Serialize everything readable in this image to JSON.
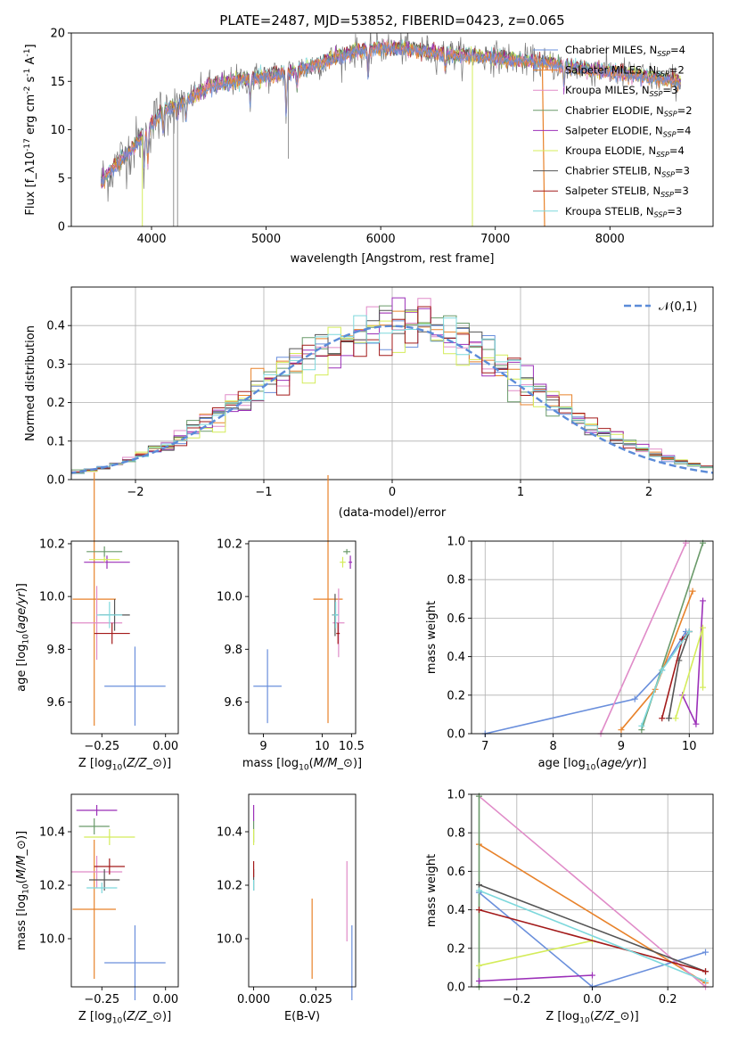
{
  "colors": [
    "#6a8fdc",
    "#e8822a",
    "#e08bc8",
    "#6a9a6a",
    "#9b2fb8",
    "#d4ec5a",
    "#555555",
    "#a31a1a",
    "#7dd8dc"
  ],
  "chart_data": [
    {
      "id": "spectrum",
      "type": "line",
      "title": "PLATE=2487, MJD=53852, FIBERID=0423, z=0.065",
      "xlabel": "wavelength [Angstrom, rest frame]",
      "ylabel": "Flux [f$_\\lambda$10$^{-17}$ erg cm$^{-2}$ s$^{-1}$ A$^{-1}$]",
      "xlim": [
        3300,
        8900
      ],
      "ylim": [
        0,
        20
      ],
      "xticks": [
        "4000",
        "5000",
        "6000",
        "7000",
        "8000"
      ],
      "yticks": [
        "0",
        "5",
        "10",
        "15",
        "20"
      ],
      "legend_position": "top-right",
      "series": [
        {
          "name": "Chabrier MILES, N$_{SSP}$=4"
        },
        {
          "name": "Salpeter MILES, N$_{SSP}$=2"
        },
        {
          "name": "Kroupa MILES, N$_{SSP}$=3"
        },
        {
          "name": "Chabrier ELODIE, N$_{SSP}$=2"
        },
        {
          "name": "Salpeter ELODIE, N$_{SSP}$=4"
        },
        {
          "name": "Kroupa ELODIE, N$_{SSP}$=4"
        },
        {
          "name": "Chabrier STELIB, N$_{SSP}$=3"
        },
        {
          "name": "Salpeter STELIB, N$_{SSP}$=3"
        },
        {
          "name": "Kroupa STELIB, N$_{SSP}$=3"
        }
      ],
      "continuum": {
        "x": [
          3550,
          3700,
          3900,
          4000,
          4100,
          4300,
          4500,
          4800,
          5000,
          5200,
          5500,
          5800,
          6000,
          6300,
          6600,
          7000,
          7200,
          7500,
          7800,
          8000,
          8300,
          8600
        ],
        "y": [
          4.5,
          6.5,
          9,
          10.5,
          12,
          13,
          14.5,
          15.2,
          15.5,
          16,
          17,
          18.2,
          18.5,
          18.3,
          17.8,
          17.5,
          17.2,
          16.8,
          16.2,
          16,
          15.5,
          15
        ]
      }
    },
    {
      "id": "residuals",
      "type": "histogram",
      "xlabel": "(data-model)/error",
      "ylabel": "Normed distribution",
      "xlim": [
        -2.5,
        2.5
      ],
      "ylim": [
        0,
        0.5
      ],
      "xticks": [
        "−2",
        "−1",
        "0",
        "1",
        "2"
      ],
      "yticks": [
        "0.0",
        "0.1",
        "0.2",
        "0.3",
        "0.4"
      ],
      "legend_position": "top-right",
      "reference_curve": {
        "label": "$\\mathcal{N}(0,1)$",
        "type": "normal",
        "mean": 0,
        "sigma": 1
      }
    },
    {
      "id": "age_vs_Z",
      "type": "errorbar",
      "xlabel": "Z [log$_{10}$($Z/Z_\\odot$)]",
      "ylabel": "age  [log$_{10}$($age/yr$)]",
      "xlim": [
        -0.37,
        0.05
      ],
      "ylim": [
        9.48,
        10.21
      ],
      "xticks": [
        "−0.25",
        "0.00"
      ],
      "yticks": [
        "9.6",
        "9.8",
        "10.0",
        "10.2"
      ],
      "points": [
        {
          "x": -0.12,
          "y": 9.66,
          "xerr": 0.12,
          "yerr": 0.15
        },
        {
          "x": -0.28,
          "y": 9.99,
          "xerr": 0.085,
          "yerr": 0.48
        },
        {
          "x": -0.27,
          "y": 9.9,
          "xerr": 0.1,
          "yerr": 0.14
        },
        {
          "x": -0.24,
          "y": 10.17,
          "xerr": 0.07,
          "yerr": 0.02
        },
        {
          "x": -0.23,
          "y": 10.13,
          "xerr": 0.09,
          "yerr": 0.025
        },
        {
          "x": -0.24,
          "y": 10.14,
          "xerr": 0.06,
          "yerr": 0.01
        },
        {
          "x": -0.2,
          "y": 9.93,
          "xerr": 0.06,
          "yerr": 0.06
        },
        {
          "x": -0.21,
          "y": 9.86,
          "xerr": 0.07,
          "yerr": 0.04
        },
        {
          "x": -0.22,
          "y": 9.93,
          "xerr": 0.05,
          "yerr": 0.05
        }
      ]
    },
    {
      "id": "age_vs_mass",
      "type": "errorbar",
      "xlabel": "mass [log$_{10}$($M/M_\\odot$)]",
      "ylabel": "",
      "xlim": [
        8.75,
        10.57
      ],
      "ylim": [
        9.48,
        10.21
      ],
      "xticks": [
        "9",
        "10",
        "10.5"
      ],
      "yticks": [
        "9.6",
        "9.8",
        "10.0",
        "10.2"
      ],
      "points": [
        {
          "x": 9.07,
          "y": 9.66,
          "xerr": 0.24,
          "yerr": 0.14
        },
        {
          "x": 10.1,
          "y": 9.99,
          "xerr": 0.25,
          "yerr": 0.47
        },
        {
          "x": 10.28,
          "y": 9.9,
          "xerr": 0.1,
          "yerr": 0.13
        },
        {
          "x": 10.42,
          "y": 10.17,
          "xerr": 0.06,
          "yerr": 0.01
        },
        {
          "x": 10.48,
          "y": 10.13,
          "xerr": 0.03,
          "yerr": 0.025
        },
        {
          "x": 10.35,
          "y": 10.13,
          "xerr": 0.05,
          "yerr": 0.02
        },
        {
          "x": 10.22,
          "y": 9.93,
          "xerr": 0.05,
          "yerr": 0.08
        },
        {
          "x": 10.27,
          "y": 9.86,
          "xerr": 0.03,
          "yerr": 0.04
        },
        {
          "x": 10.23,
          "y": 9.93,
          "xerr": 0.05,
          "yerr": 0.05
        }
      ]
    },
    {
      "id": "weight_vs_age",
      "type": "line",
      "xlabel": "age  [log$_{10}$($age/yr$)]",
      "ylabel": "mass weight",
      "xlim": [
        6.8,
        10.35
      ],
      "ylim": [
        0,
        1
      ],
      "xticks": [
        "7",
        "8",
        "9",
        "10"
      ],
      "yticks": [
        "0.0",
        "0.2",
        "0.4",
        "0.6",
        "0.8",
        "1.0"
      ],
      "series": [
        {
          "x": [
            7.0,
            9.2,
            9.6,
            9.95
          ],
          "y": [
            0.0,
            0.18,
            0.33,
            0.53
          ]
        },
        {
          "x": [
            9.0,
            9.5,
            10.05
          ],
          "y": [
            0.02,
            0.23,
            0.74
          ]
        },
        {
          "x": [
            8.7,
            9.95
          ],
          "y": [
            0.0,
            0.99
          ]
        },
        {
          "x": [
            9.3,
            10.2
          ],
          "y": [
            0.02,
            0.99
          ]
        },
        {
          "x": [
            9.9,
            10.1,
            10.2
          ],
          "y": [
            0.2,
            0.05,
            0.69
          ]
        },
        {
          "x": [
            9.8,
            10.2,
            10.2
          ],
          "y": [
            0.08,
            0.55,
            0.24
          ]
        },
        {
          "x": [
            9.7,
            9.85,
            10.0
          ],
          "y": [
            0.08,
            0.38,
            0.53
          ]
        },
        {
          "x": [
            9.6,
            9.9,
            10.0
          ],
          "y": [
            0.08,
            0.49,
            0.53
          ]
        },
        {
          "x": [
            9.3,
            9.6,
            10.0
          ],
          "y": [
            0.04,
            0.33,
            0.53
          ]
        }
      ]
    },
    {
      "id": "mass_vs_Z",
      "type": "errorbar",
      "xlabel": "Z [log$_{10}$($Z/Z_\\odot$)]",
      "ylabel": "mass [log$_{10}$($M/M_\\odot$)]",
      "xlim": [
        -0.37,
        0.05
      ],
      "ylim": [
        9.82,
        10.54
      ],
      "xticks": [
        "−0.25",
        "0.00"
      ],
      "yticks": [
        "10.0",
        "10.2",
        "10.4"
      ],
      "points": [
        {
          "x": -0.12,
          "y": 9.91,
          "xerr": 0.12,
          "yerr": 0.14
        },
        {
          "x": -0.28,
          "y": 10.11,
          "xerr": 0.085,
          "yerr": 0.26
        },
        {
          "x": -0.27,
          "y": 10.25,
          "xerr": 0.1,
          "yerr": 0.06
        },
        {
          "x": -0.28,
          "y": 10.42,
          "xerr": 0.06,
          "yerr": 0.03
        },
        {
          "x": -0.27,
          "y": 10.48,
          "xerr": 0.08,
          "yerr": 0.02
        },
        {
          "x": -0.22,
          "y": 10.38,
          "xerr": 0.1,
          "yerr": 0.03
        },
        {
          "x": -0.24,
          "y": 10.22,
          "xerr": 0.06,
          "yerr": 0.04
        },
        {
          "x": -0.22,
          "y": 10.27,
          "xerr": 0.06,
          "yerr": 0.03
        },
        {
          "x": -0.25,
          "y": 10.19,
          "xerr": 0.06,
          "yerr": 0.02
        }
      ]
    },
    {
      "id": "mass_vs_ebv",
      "type": "errorbar",
      "xlabel": "E(B-V)",
      "ylabel": "",
      "xlim": [
        -0.002,
        0.041
      ],
      "ylim": [
        9.82,
        10.54
      ],
      "xticks": [
        "0.000",
        "0.025"
      ],
      "yticks": [
        "10.0",
        "10.2",
        "10.4"
      ],
      "points": [
        {
          "x": 0.0395,
          "y": 9.91,
          "xerr": 0,
          "yerr": 0.14
        },
        {
          "x": 0.0235,
          "y": 10.0,
          "xerr": 0,
          "yerr": 0.15
        },
        {
          "x": 0.0375,
          "y": 10.14,
          "xerr": 0,
          "yerr": 0.15
        },
        {
          "x": 0.0,
          "y": 10.4,
          "xerr": 0,
          "yerr": 0.04
        },
        {
          "x": 0.0,
          "y": 10.47,
          "xerr": 0,
          "yerr": 0.03
        },
        {
          "x": 0.0,
          "y": 10.38,
          "xerr": 0,
          "yerr": 0.03
        },
        {
          "x": 0.0,
          "y": 10.22,
          "xerr": 0,
          "yerr": 0.04
        },
        {
          "x": 0.0,
          "y": 10.26,
          "xerr": 0,
          "yerr": 0.03
        },
        {
          "x": 0.0,
          "y": 10.2,
          "xerr": 0,
          "yerr": 0.02
        }
      ]
    },
    {
      "id": "weight_vs_Z",
      "type": "line",
      "xlabel": "Z [log$_{10}$($Z/Z_\\odot$)]",
      "ylabel": "mass weight",
      "xlim": [
        -0.32,
        0.32
      ],
      "ylim": [
        0,
        1
      ],
      "xticks": [
        "−0.2",
        "0.0",
        "0.2"
      ],
      "yticks": [
        "0.0",
        "0.2",
        "0.4",
        "0.6",
        "0.8",
        "1.0"
      ],
      "series": [
        {
          "x": [
            -0.3,
            0.0,
            0.3
          ],
          "y": [
            0.49,
            0.0,
            0.18
          ]
        },
        {
          "x": [
            -0.3,
            0.3
          ],
          "y": [
            0.74,
            0.02
          ]
        },
        {
          "x": [
            -0.3,
            0.3
          ],
          "y": [
            0.99,
            0.0
          ]
        },
        {
          "x": [
            -0.3,
            -0.3
          ],
          "y": [
            0.99,
            0.0
          ]
        },
        {
          "x": [
            -0.3,
            0.0
          ],
          "y": [
            0.03,
            0.06
          ]
        },
        {
          "x": [
            -0.3,
            0.0
          ],
          "y": [
            0.11,
            0.24
          ]
        },
        {
          "x": [
            -0.3,
            0.3
          ],
          "y": [
            0.53,
            0.08
          ]
        },
        {
          "x": [
            -0.3,
            0.3
          ],
          "y": [
            0.4,
            0.08
          ]
        },
        {
          "x": [
            -0.3,
            0.3
          ],
          "y": [
            0.5,
            0.03
          ]
        }
      ]
    }
  ]
}
